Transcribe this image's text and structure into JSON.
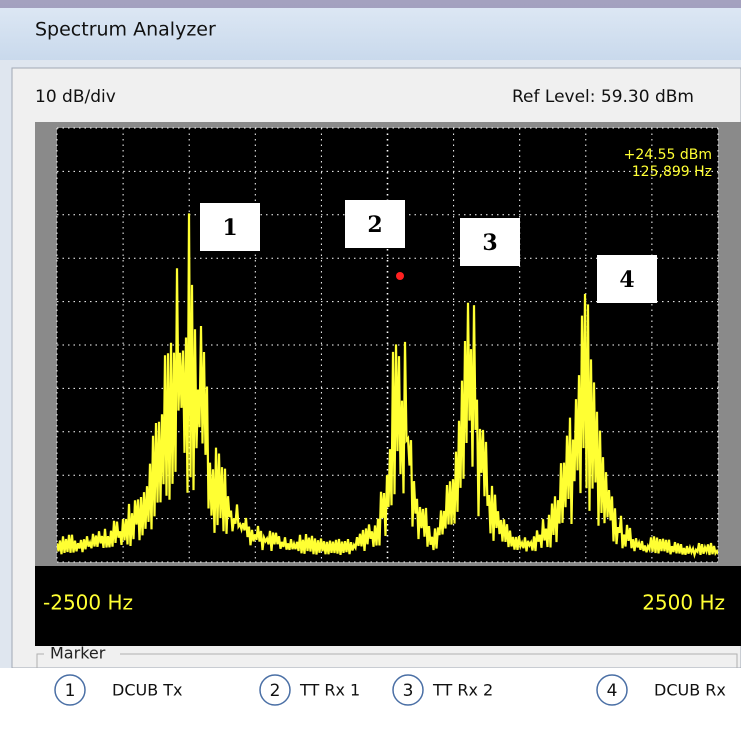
{
  "window": {
    "title": "Spectrum Analyzer"
  },
  "analyzer": {
    "scale": "10 dB/div",
    "ref_level": "Ref Level: 59.30 dBm",
    "marker_readout": [
      "+24.55 dBm",
      "125,899 Hz"
    ],
    "freq_start": "-2500 Hz",
    "freq_end": "2500 Hz",
    "peak_labels": [
      "1",
      "2",
      "3",
      "4"
    ]
  },
  "marker_group": {
    "title": "Marker"
  },
  "legend": [
    {
      "number": "1",
      "label": "DCUB Tx"
    },
    {
      "number": "2",
      "label": "TT Rx 1"
    },
    {
      "number": "3",
      "label": "TT Rx 2"
    },
    {
      "number": "4",
      "label": "DCUB Rx"
    }
  ]
}
